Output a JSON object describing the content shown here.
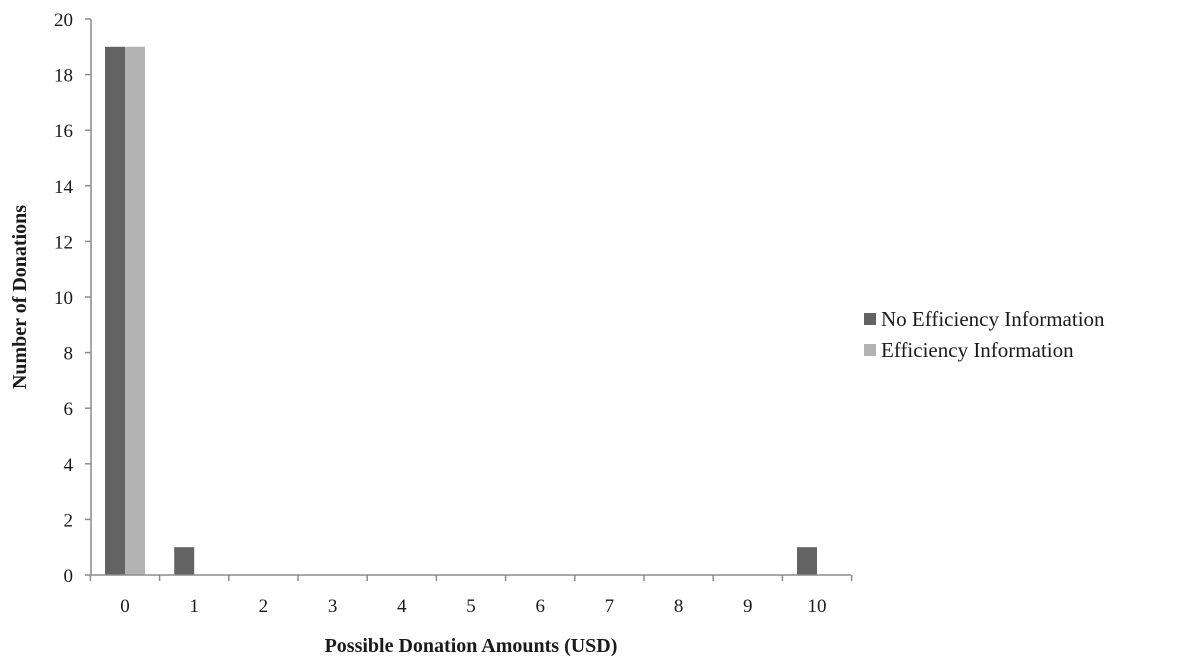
{
  "chart_data": {
    "type": "bar",
    "categories": [
      "0",
      "1",
      "2",
      "3",
      "4",
      "5",
      "6",
      "7",
      "8",
      "9",
      "10"
    ],
    "series": [
      {
        "name": "No Efficiency Information",
        "color": "#636363",
        "values": [
          19,
          1,
          0,
          0,
          0,
          0,
          0,
          0,
          0,
          0,
          1
        ]
      },
      {
        "name": "Efficiency Information",
        "color": "#b3b3b3",
        "values": [
          19,
          0,
          0,
          0,
          0,
          0,
          0,
          0,
          0,
          0,
          0
        ]
      }
    ],
    "title": "",
    "xlabel": "Possible Donation Amounts (USD)",
    "ylabel": "Number of Donations",
    "ylim": [
      0,
      20
    ],
    "yticks": [
      "0",
      "2",
      "4",
      "6",
      "8",
      "10",
      "12",
      "14",
      "16",
      "18",
      "20"
    ],
    "grid": false,
    "legend_position": "right"
  }
}
